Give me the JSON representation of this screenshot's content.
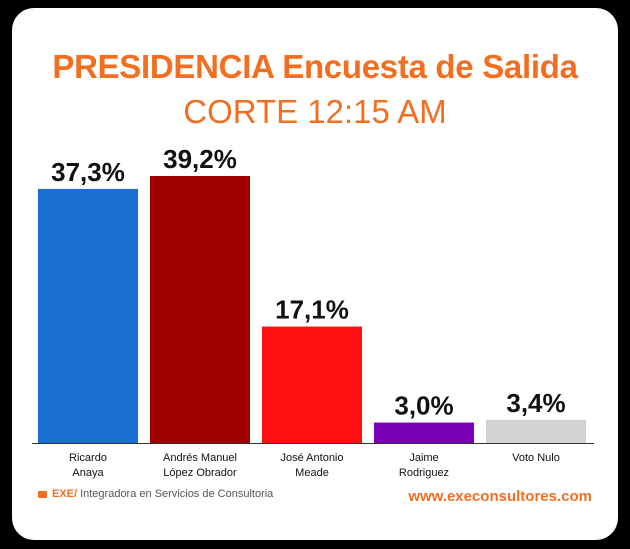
{
  "header": {
    "title": "PRESIDENCIA Encuesta de Salida",
    "subtitle": "CORTE 12:15 AM"
  },
  "footer": {
    "brand": "EXE/",
    "tagline": "Integradora en Servicios de Consultoria",
    "website": "www.execonsultores.com"
  },
  "colors": {
    "accent": "#f26f21",
    "background": "#000000",
    "card": "#ffffff",
    "axis": "#333333"
  },
  "chart_data": {
    "type": "bar",
    "title": "PRESIDENCIA Encuesta de Salida",
    "subtitle": "CORTE 12:15 AM",
    "categories": [
      [
        "Ricardo",
        "Anaya"
      ],
      [
        "Andrés Manuel",
        "López Obrador"
      ],
      [
        "José Antonio",
        "Meade"
      ],
      [
        "Jaime",
        "Rodriguez"
      ],
      [
        "Voto Nulo"
      ]
    ],
    "values": [
      37.3,
      39.2,
      17.1,
      3.0,
      3.4
    ],
    "data_labels": [
      "37,3%",
      "39,2%",
      "17,1%",
      "3,0%",
      "3,4%"
    ],
    "colors": [
      "#1a6fd1",
      "#a10000",
      "#ff1010",
      "#7a00b8",
      "#d3d3d3"
    ],
    "ylim": [
      0,
      39.2
    ],
    "xlabel": "",
    "ylabel": "",
    "grid": false,
    "legend": "none"
  }
}
